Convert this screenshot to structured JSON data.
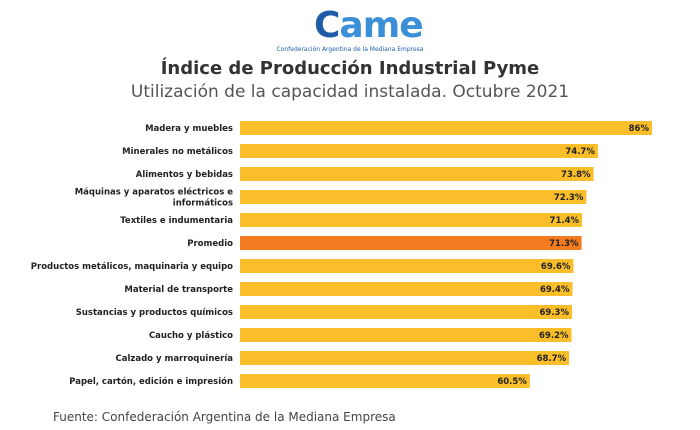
{
  "logo": {
    "word_c": "C",
    "word_rest": "ame",
    "tagline": "Confederación Argentina de la Mediana Empresa"
  },
  "title": "Índice de Producción Industrial Pyme",
  "subtitle": "Utilización de la capacidad instalada. Octubre 2021",
  "footer": "Fuente: Confederación Argentina de la Mediana Empresa",
  "colors": {
    "bar": "#F9BE2A",
    "highlight": "#F47B20",
    "brand_dark": "#1F5CA8",
    "brand_light": "#3A8FD6"
  },
  "chart_data": {
    "type": "bar",
    "orientation": "horizontal",
    "categories": [
      "Madera y muebles",
      "Minerales no metálicos",
      "Alimentos y bebidas",
      "Máquinas y aparatos eléctricos e informáticos",
      "Textiles e indumentaria",
      "Promedio",
      "Productos metálicos, maquinaria y equipo",
      "Material de transporte",
      "Sustancias y productos químicos",
      "Caucho y plástico",
      "Calzado y marroquinería",
      "Papel, cartón, edición e impresión"
    ],
    "values": [
      86,
      74.7,
      73.8,
      72.3,
      71.4,
      71.3,
      69.6,
      69.4,
      69.3,
      69.2,
      68.7,
      60.5
    ],
    "value_labels": [
      "86%",
      "74.7%",
      "73.8%",
      "72.3%",
      "71.4%",
      "71.3%",
      "69.6%",
      "69.4%",
      "69.3%",
      "69.2%",
      "68.7%",
      "60.5%"
    ],
    "highlight_category": "Promedio",
    "unit": "%",
    "xlim": [
      0,
      86
    ],
    "grid": false,
    "legend": "none"
  }
}
